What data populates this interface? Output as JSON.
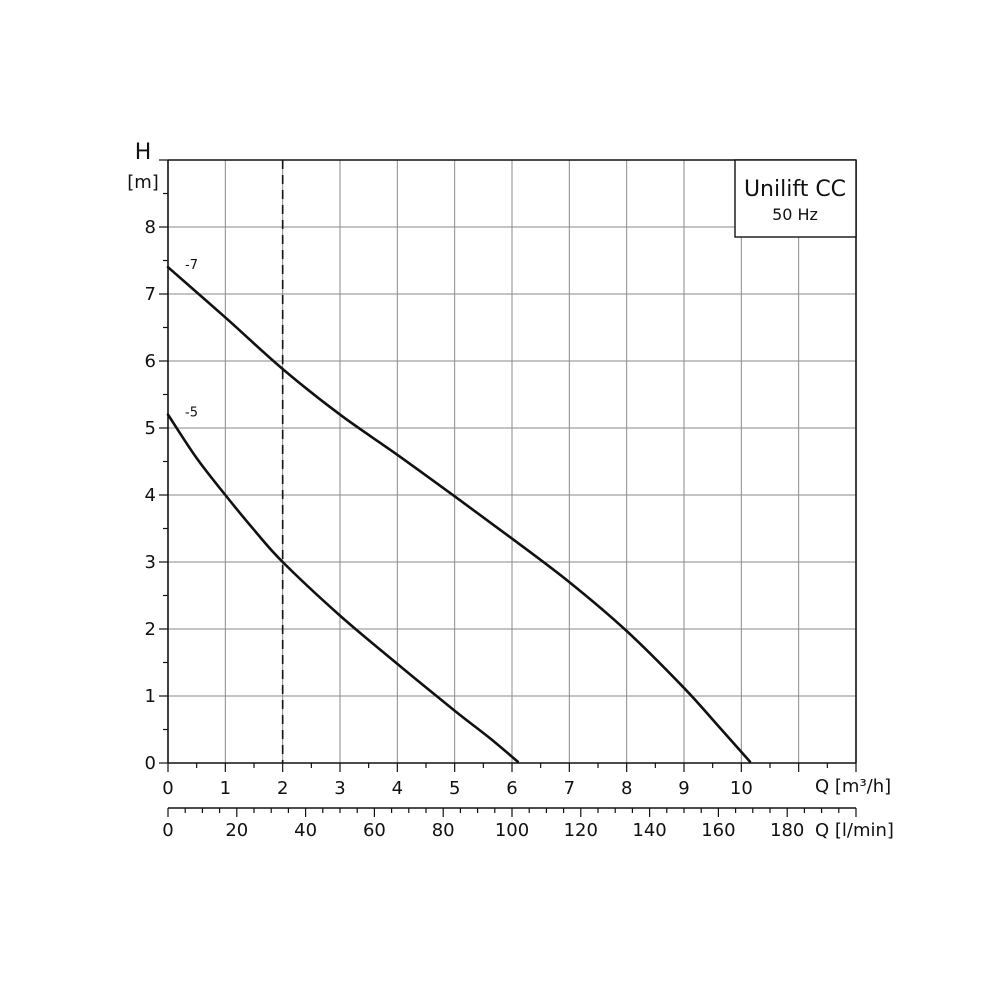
{
  "chart_data": {
    "type": "line",
    "title": "Unilift CC",
    "subtitle": "50 Hz",
    "ylabel_symbol": "H",
    "ylabel_unit": "[m]",
    "xlabel": "Q [m³/h]",
    "x2label": "Q [l/min]",
    "ylim": [
      0,
      9
    ],
    "xlim": [
      0,
      12
    ],
    "yticks": [
      0,
      1,
      2,
      3,
      4,
      5,
      6,
      7,
      8
    ],
    "xticks": [
      0,
      1,
      2,
      3,
      4,
      5,
      6,
      7,
      8,
      9,
      10
    ],
    "x2ticks": [
      0,
      20,
      40,
      60,
      80,
      100,
      120,
      140,
      160,
      180
    ],
    "x2_per_x": 16.6667,
    "reference_line_x": 2,
    "grid": true,
    "series": [
      {
        "name": "-7",
        "x": [
          0,
          1,
          2,
          3,
          4,
          5,
          6,
          7,
          8,
          9,
          9.6,
          10.15
        ],
        "y": [
          7.4,
          6.65,
          5.88,
          5.2,
          4.6,
          3.98,
          3.35,
          2.7,
          1.97,
          1.12,
          0.55,
          0.02
        ]
      },
      {
        "name": "-5",
        "x": [
          0,
          0.5,
          1,
          1.5,
          2,
          3,
          4,
          5,
          5.6,
          6.1
        ],
        "y": [
          5.2,
          4.55,
          4.0,
          3.48,
          3.0,
          2.2,
          1.48,
          0.78,
          0.38,
          0.02
        ]
      }
    ]
  }
}
